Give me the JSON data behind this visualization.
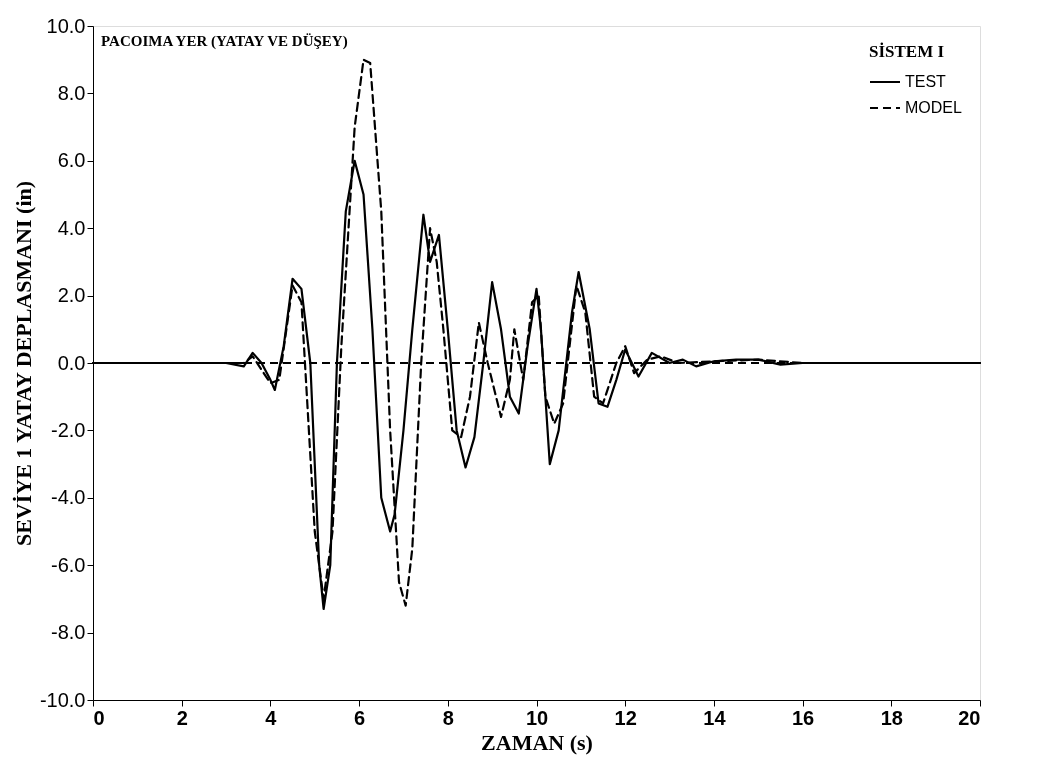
{
  "chart_data": {
    "type": "line",
    "xlabel": "ZAMAN (s)",
    "ylabel": "SEVİYE 1 YATAY DEPLASMANI (in)",
    "legend_title": "SİSTEM I",
    "legend": "top right",
    "grid": false,
    "marker": "none",
    "annotations": [
      "PACOIMA YER (YATAY VE DÜŞEY)"
    ],
    "xlim": [
      0,
      20
    ],
    "xticks": [
      0,
      2,
      4,
      6,
      8,
      10,
      12,
      14,
      16,
      18,
      20
    ],
    "ylim": [
      -10,
      10
    ],
    "yticks": [
      {
        "value": -10,
        "label": "-10.0"
      },
      {
        "value": -8,
        "label": "-8.0"
      },
      {
        "value": -6,
        "label": "-6.0"
      },
      {
        "value": -4,
        "label": "-4.0"
      },
      {
        "value": -2,
        "label": "-2.0"
      },
      {
        "value": 0,
        "label": "0.0"
      },
      {
        "value": 2,
        "label": "2.0"
      },
      {
        "value": 4,
        "label": "4.0"
      },
      {
        "value": 6,
        "label": "6.0"
      },
      {
        "value": 8,
        "label": "8.0"
      },
      {
        "value": 10,
        "label": "10.0"
      }
    ],
    "ref_lines": [
      {
        "axis": "y",
        "value": 0,
        "line_style": "dashed",
        "color": "#000000"
      }
    ],
    "series": [
      {
        "name": "TEST",
        "color": "#000000",
        "line_style": "solid",
        "x": [
          0,
          3.0,
          3.4,
          3.6,
          3.8,
          4.0,
          4.1,
          4.3,
          4.5,
          4.7,
          4.9,
          5.1,
          5.2,
          5.35,
          5.5,
          5.7,
          5.9,
          6.1,
          6.3,
          6.5,
          6.7,
          6.8,
          7.0,
          7.2,
          7.45,
          7.6,
          7.8,
          8.0,
          8.2,
          8.4,
          8.6,
          8.8,
          9.0,
          9.2,
          9.4,
          9.6,
          9.8,
          10.0,
          10.1,
          10.3,
          10.5,
          10.8,
          10.95,
          11.2,
          11.4,
          11.6,
          11.8,
          12.0,
          12.3,
          12.6,
          13.0,
          13.3,
          13.6,
          14.0,
          14.5,
          15.0,
          15.5,
          16.0,
          17.0,
          18.0,
          19.0,
          20.0
        ],
        "values": [
          0,
          0,
          -0.1,
          0.3,
          0,
          -0.5,
          -0.8,
          0.5,
          2.5,
          2.2,
          0,
          -6,
          -7.3,
          -6,
          0,
          4.5,
          6.0,
          5,
          1,
          -4,
          -5.0,
          -4.5,
          -2,
          1,
          4.4,
          3.0,
          3.8,
          1.0,
          -2.0,
          -3.1,
          -2.2,
          0,
          2.4,
          1,
          -1.0,
          -1.5,
          0.5,
          2.2,
          1.0,
          -3.0,
          -2,
          1.5,
          2.7,
          1,
          -1.2,
          -1.3,
          -0.5,
          0.4,
          -0.4,
          0.3,
          0,
          0.1,
          -0.1,
          0.05,
          0.1,
          0.1,
          -0.05,
          0,
          0,
          0,
          0,
          0
        ]
      },
      {
        "name": "MODEL",
        "color": "#000000",
        "line_style": "dashed",
        "x": [
          0,
          3.4,
          3.6,
          4.0,
          4.2,
          4.5,
          4.7,
          5.0,
          5.2,
          5.4,
          5.6,
          5.9,
          6.1,
          6.25,
          6.5,
          6.7,
          6.9,
          7.05,
          7.2,
          7.4,
          7.6,
          7.75,
          7.9,
          8.1,
          8.3,
          8.5,
          8.7,
          8.9,
          9.2,
          9.4,
          9.5,
          9.7,
          9.9,
          10.05,
          10.2,
          10.4,
          10.6,
          10.9,
          11.1,
          11.3,
          11.5,
          11.8,
          12.0,
          12.2,
          12.5,
          12.8,
          13.2,
          14.0,
          15.0,
          16.0,
          20.0
        ],
        "values": [
          0,
          0,
          0.2,
          -0.6,
          -0.5,
          2.3,
          1.8,
          -5,
          -7.0,
          -5,
          0.5,
          7,
          9.0,
          8.9,
          4.5,
          -2,
          -6.5,
          -7.2,
          -5.5,
          0,
          4.0,
          3.0,
          1,
          -2,
          -2.2,
          -1,
          1.2,
          0,
          -1.6,
          -0.5,
          1.0,
          -0.5,
          1.8,
          2.0,
          -1.0,
          -1.8,
          -1.2,
          2.3,
          1.5,
          -1.0,
          -1.2,
          0,
          0.5,
          -0.3,
          0.1,
          0.2,
          0,
          0.05,
          0.1,
          0,
          0
        ]
      }
    ]
  }
}
